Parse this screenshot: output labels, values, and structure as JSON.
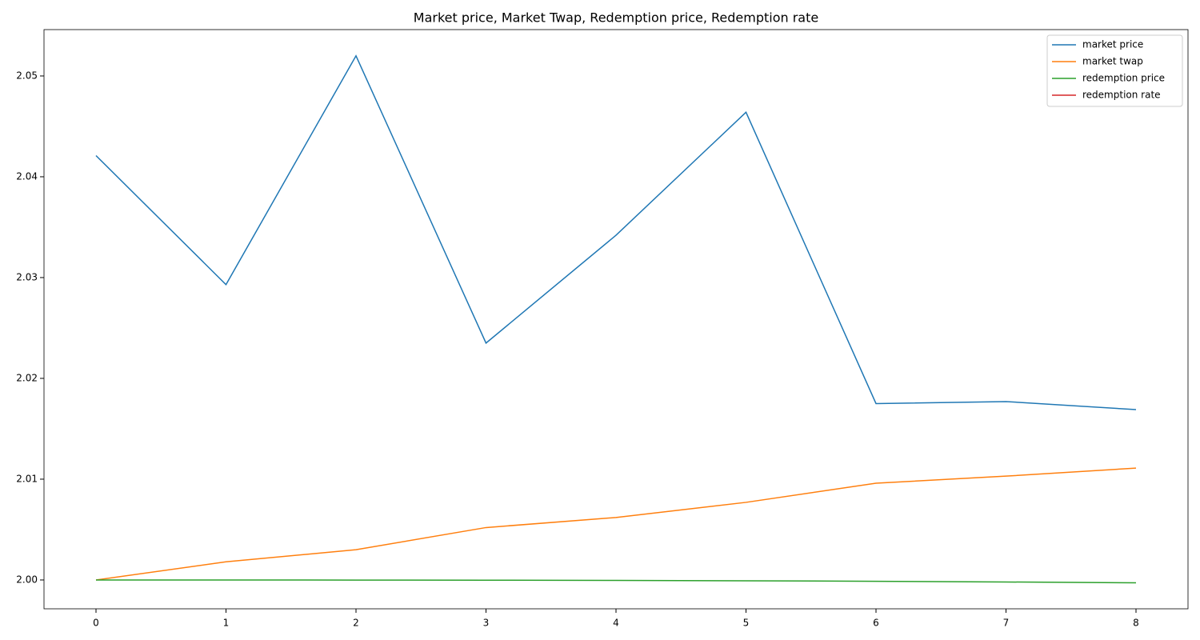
{
  "chart_data": {
    "type": "line",
    "title": "Market price, Market Twap, Redemption price, Redemption rate",
    "x": [
      0,
      1,
      2,
      3,
      4,
      5,
      6,
      7,
      8
    ],
    "series": [
      {
        "name": "market price",
        "color": "#1f77b4",
        "values": [
          2.0421,
          2.0293,
          2.052,
          2.0235,
          2.0342,
          2.0464,
          2.0175,
          2.0177,
          2.0169
        ]
      },
      {
        "name": "market twap",
        "color": "#ff7f0e",
        "values": [
          2.0,
          2.0018,
          2.003,
          2.0052,
          2.0062,
          2.0077,
          2.0096,
          2.0103,
          2.0111
        ]
      },
      {
        "name": "redemption price",
        "color": "#2ca02c",
        "values": [
          2.0,
          2.0,
          1.99999,
          1.99998,
          1.99996,
          1.99992,
          1.99987,
          1.9998,
          1.99972
        ]
      },
      {
        "name": "redemption rate",
        "color": "#d62728",
        "values": [
          null,
          null,
          null,
          null,
          null,
          null,
          null,
          null,
          null
        ]
      }
    ],
    "xlim": [
      -0.4,
      8.4
    ],
    "xticks": [
      0,
      1,
      2,
      3,
      4,
      5,
      6,
      7,
      8
    ],
    "ylim": [
      1.99714,
      2.0546
    ],
    "yticks": [
      {
        "value": 2,
        "label": "2.00"
      },
      2.01,
      2.02,
      2.03,
      2.04,
      2.05
    ],
    "legend": "upper right",
    "grid": false
  }
}
